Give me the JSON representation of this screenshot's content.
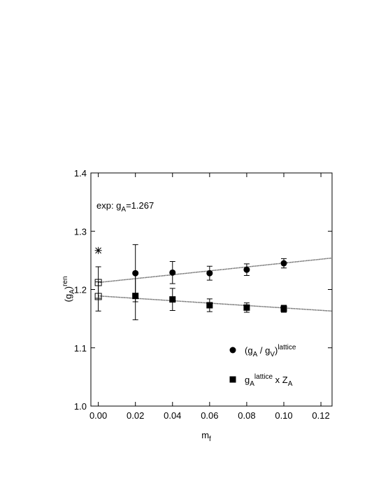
{
  "chart_data": {
    "type": "scatter",
    "ylabel_parts": [
      {
        "text": "(g"
      },
      {
        "text": "A",
        "style": "sub"
      },
      {
        "text": ")"
      },
      {
        "text": "ren",
        "style": "sup"
      }
    ],
    "xlabel_parts": [
      {
        "text": "m"
      },
      {
        "text": "f",
        "style": "sub"
      }
    ],
    "annotation_parts": [
      {
        "text": "exp: g"
      },
      {
        "text": "A",
        "style": "sub"
      },
      {
        "text": "=1.267"
      }
    ],
    "xlim": [
      -0.004,
      0.126
    ],
    "ylim": [
      1.0,
      1.4
    ],
    "xticks": [
      {
        "value": 0,
        "label": "0.00"
      },
      {
        "value": 0.02,
        "label": "0.02"
      },
      {
        "value": 0.04,
        "label": "0.04"
      },
      {
        "value": 0.06,
        "label": "0.06"
      },
      {
        "value": 0.08,
        "label": "0.08"
      },
      {
        "value": 0.1,
        "label": "0.10"
      },
      {
        "value": 0.12,
        "label": "0.12"
      }
    ],
    "yticks": [
      {
        "value": 1.0,
        "label": "1.0"
      },
      {
        "value": 1.1,
        "label": "1.1"
      },
      {
        "value": 1.2,
        "label": "1.2"
      },
      {
        "value": 1.3,
        "label": "1.3"
      },
      {
        "value": 1.4,
        "label": "1.4"
      }
    ],
    "series": [
      {
        "name_parts": [
          {
            "text": "(g"
          },
          {
            "text": "A",
            "style": "sub"
          },
          {
            "text": " / g"
          },
          {
            "text": "V",
            "style": "sub"
          },
          {
            "text": ")"
          },
          {
            "text": "lattice",
            "style": "sup"
          }
        ],
        "marker": "circle",
        "color": "#000000",
        "x": [
          0.02,
          0.04,
          0.06,
          0.08,
          0.1
        ],
        "values": [
          1.228,
          1.229,
          1.228,
          1.234,
          1.245
        ],
        "errors": [
          0.049,
          0.019,
          0.012,
          0.01,
          0.008
        ]
      },
      {
        "name_parts": [
          {
            "text": "g"
          },
          {
            "text": "A",
            "style": "sub"
          },
          {
            "text": "lattice",
            "style": "sup"
          },
          {
            "text": " x Z"
          },
          {
            "text": "A",
            "style": "sub"
          }
        ],
        "marker": "square",
        "color": "#000000",
        "x": [
          0.02,
          0.04,
          0.06,
          0.08,
          0.1
        ],
        "values": [
          1.189,
          1.183,
          1.173,
          1.169,
          1.167
        ],
        "errors": [
          0.041,
          0.019,
          0.011,
          0.008,
          0.006
        ]
      },
      {
        "marker": "open-square",
        "color": "#000000",
        "x": [
          0,
          0
        ],
        "values": [
          1.212,
          1.188
        ],
        "errors": [
          0.027,
          0.025
        ]
      },
      {
        "marker": "star",
        "color": "#000000",
        "x": [
          0
        ],
        "values": [
          1.267
        ]
      }
    ],
    "fits": [
      {
        "x": [
          0,
          0.126
        ],
        "values": [
          1.212,
          1.254
        ],
        "color": "#555555"
      },
      {
        "x": [
          0,
          0.126
        ],
        "values": [
          1.189,
          1.163
        ],
        "color": "#555555"
      }
    ]
  }
}
